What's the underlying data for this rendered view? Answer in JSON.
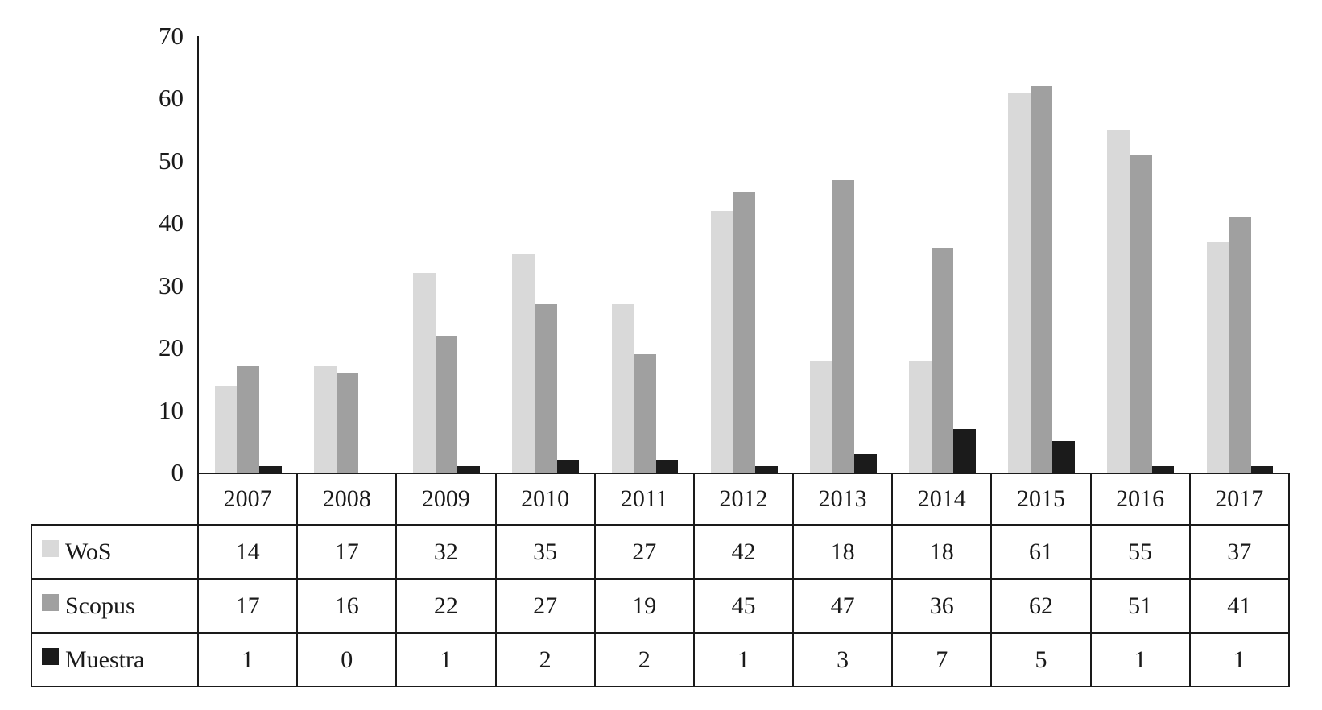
{
  "chart_data": {
    "type": "bar",
    "title": "",
    "xlabel": "",
    "ylabel": "",
    "categories": [
      "2007",
      "2008",
      "2009",
      "2010",
      "2011",
      "2012",
      "2013",
      "2014",
      "2015",
      "2016",
      "2017"
    ],
    "series": [
      {
        "name": "WoS",
        "color": "#d9d9d9",
        "values": [
          14,
          17,
          32,
          35,
          27,
          42,
          18,
          18,
          61,
          55,
          37
        ]
      },
      {
        "name": "Scopus",
        "color": "#a0a0a0",
        "values": [
          17,
          16,
          22,
          27,
          19,
          45,
          47,
          36,
          62,
          51,
          41
        ]
      },
      {
        "name": "Muestra",
        "color": "#1b1b1b",
        "values": [
          1,
          0,
          1,
          2,
          2,
          1,
          3,
          7,
          5,
          1,
          1
        ]
      }
    ],
    "ylim": [
      0,
      70
    ],
    "yticks": [
      0,
      10,
      20,
      30,
      40,
      50,
      60,
      70
    ],
    "grid": false,
    "legend_position": "table-left",
    "axis_color": "#1a1a1a"
  }
}
